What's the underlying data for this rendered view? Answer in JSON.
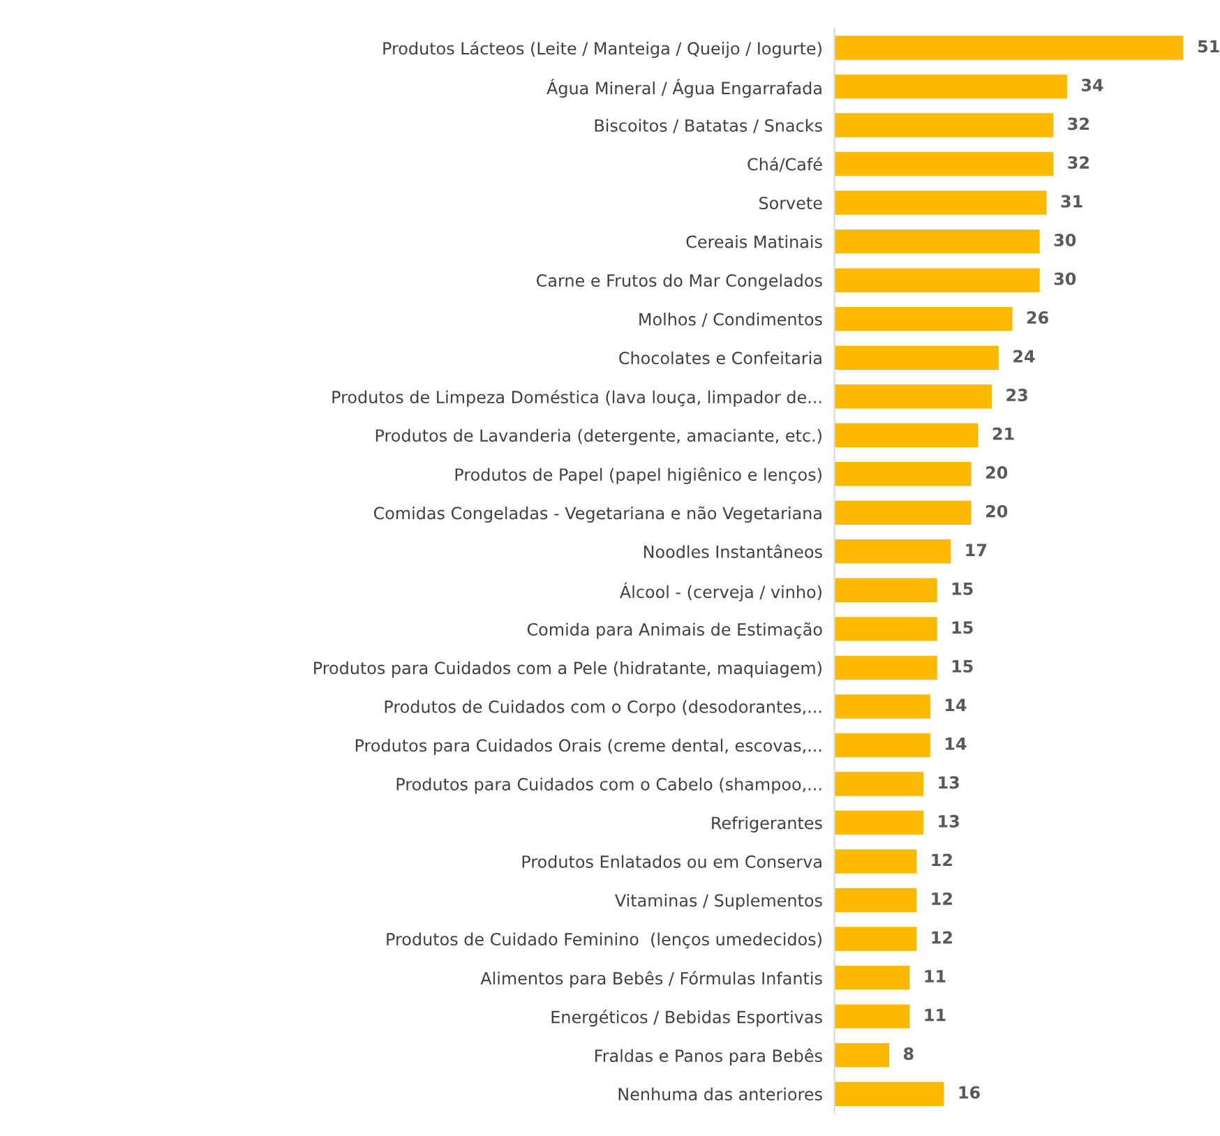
{
  "chart_data": {
    "type": "bar",
    "orientation": "horizontal",
    "data_labels": true,
    "color": "#fbb900",
    "grid": false,
    "legend": false,
    "categories": [
      "Produtos Lácteos (Leite / Manteiga / Queijo / Iogurte)",
      "Água Mineral / Água Engarrafada",
      "Biscoitos / Batatas / Snacks",
      "Chá/Café",
      "Sorvete",
      "Cereais Matinais",
      "Carne e Frutos do Mar Congelados",
      "Molhos / Condimentos",
      "Chocolates e Confeitaria",
      "Produtos de Limpeza Doméstica (lava louça, limpador de...",
      "Produtos de Lavanderia (detergente, amaciante, etc.)",
      "Produtos de Papel (papel higiênico e lenços)",
      "Comidas Congeladas - Vegetariana e não Vegetariana",
      "Noodles Instantâneos",
      "Álcool - (cerveja / vinho)",
      "Comida para Animais de Estimação",
      "Produtos para Cuidados com a Pele (hidratante, maquiagem)",
      "Produtos de Cuidados com o Corpo (desodorantes,...",
      "Produtos para Cuidados Orais (creme dental, escovas,...",
      "Produtos para Cuidados com o Cabelo (shampoo,...",
      "Refrigerantes",
      "Produtos Enlatados ou em Conserva",
      "Vitaminas / Suplementos",
      "Produtos de Cuidado Feminino  (lenços umedecidos)",
      "Alimentos para Bebês / Fórmulas Infantis",
      "Energéticos / Bebidas Esportivas",
      "Fraldas e Panos para Bebês",
      "Nenhuma das anteriores"
    ],
    "values": [
      51,
      34,
      32,
      32,
      31,
      30,
      30,
      26,
      24,
      23,
      21,
      20,
      20,
      17,
      15,
      15,
      15,
      14,
      14,
      13,
      13,
      12,
      12,
      12,
      11,
      11,
      8,
      16
    ]
  }
}
